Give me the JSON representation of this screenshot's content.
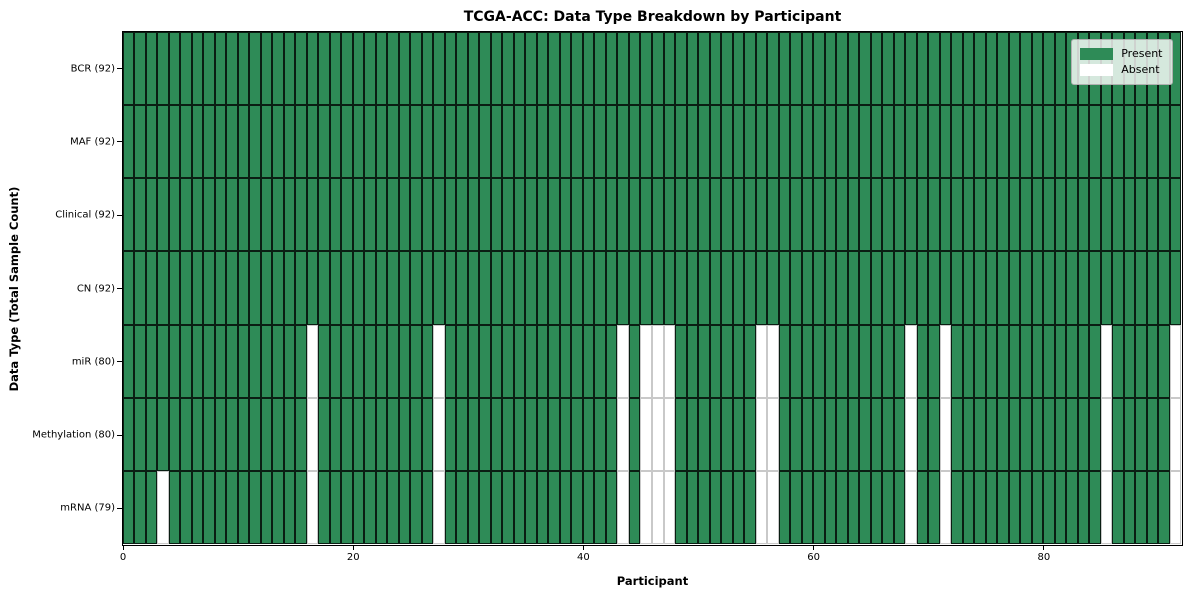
{
  "chart_data": {
    "type": "heatmap",
    "title": "TCGA-ACC: Data Type Breakdown by Participant",
    "xlabel": "Participant",
    "ylabel": "Data Type (Total Sample Count)",
    "n_participants": 92,
    "x_ticks": [
      0,
      20,
      40,
      60,
      80
    ],
    "xlim": [
      0,
      92
    ],
    "grid": "cell-borders",
    "legend_position": "upper right",
    "rows": [
      {
        "label": "BCR (92)",
        "count": 92,
        "absent": []
      },
      {
        "label": "MAF (92)",
        "count": 92,
        "absent": []
      },
      {
        "label": "Clinical (92)",
        "count": 92,
        "absent": []
      },
      {
        "label": "CN (92)",
        "count": 92,
        "absent": []
      },
      {
        "label": "miR (80)",
        "count": 80,
        "absent": [
          16,
          27,
          43,
          45,
          46,
          47,
          55,
          56,
          68,
          71,
          85,
          91
        ]
      },
      {
        "label": "Methylation (80)",
        "count": 80,
        "absent": [
          16,
          27,
          43,
          45,
          46,
          47,
          55,
          56,
          68,
          71,
          85,
          91
        ]
      },
      {
        "label": "mRNA (79)",
        "count": 79,
        "absent": [
          3,
          16,
          27,
          43,
          45,
          46,
          47,
          55,
          56,
          68,
          71,
          85,
          91
        ]
      }
    ],
    "legend": [
      {
        "label": "Present",
        "color": "#2e8b57"
      },
      {
        "label": "Absent",
        "color": "#ffffff"
      }
    ],
    "colors": {
      "present": "#2e8b57",
      "absent": "#ffffff",
      "present_edge": "rgba(0,0,0,0.78)",
      "absent_edge": "#c9c9c9",
      "frame": "#000000",
      "background": "#ffffff"
    }
  }
}
